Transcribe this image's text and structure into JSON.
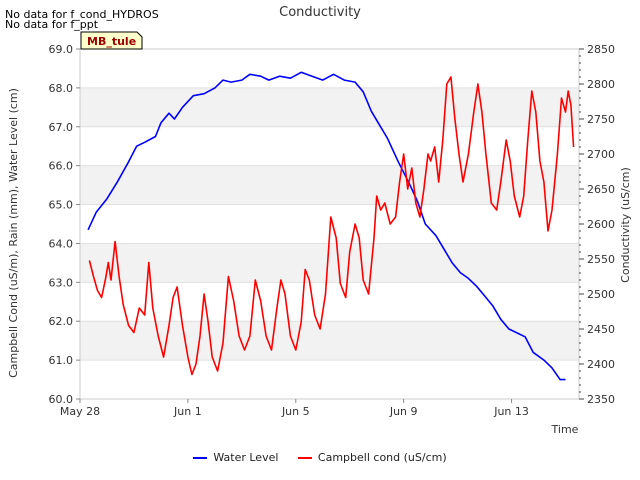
{
  "no_data_lines": [
    "No data for f_cond_HYDROS",
    "No data for f_ppt"
  ],
  "site_badge": "MB_tule",
  "chart_data": {
    "type": "line",
    "title": "Conductivity",
    "xlabel": "Time",
    "ylabel_left": "Campbell Cond (uS/m), Rain (mm), Water Level (cm)",
    "ylabel_right": "Conductivity (uS/cm)",
    "x_range_days": [
      0,
      18.5
    ],
    "x_ticks": [
      {
        "day": 0,
        "label": "May 28"
      },
      {
        "day": 4,
        "label": "Jun 1"
      },
      {
        "day": 8,
        "label": "Jun 5"
      },
      {
        "day": 12,
        "label": "Jun 9"
      },
      {
        "day": 16,
        "label": "Jun 13"
      }
    ],
    "ylim_left": [
      60.0,
      69.0
    ],
    "yticks_left": [
      "60.0",
      "61.0",
      "62.0",
      "63.0",
      "64.0",
      "65.0",
      "66.0",
      "67.0",
      "68.0",
      "69.0"
    ],
    "ylim_right": [
      2350,
      2850
    ],
    "yticks_right": [
      "2350",
      "2400",
      "2450",
      "2500",
      "2550",
      "2600",
      "2650",
      "2700",
      "2750",
      "2800",
      "2850"
    ],
    "series": [
      {
        "name": "Water Level",
        "axis": "left",
        "color": "#0000ff",
        "points": [
          [
            0.3,
            64.35
          ],
          [
            0.6,
            64.8
          ],
          [
            1.0,
            65.15
          ],
          [
            1.4,
            65.6
          ],
          [
            1.8,
            66.1
          ],
          [
            2.1,
            66.5
          ],
          [
            2.4,
            66.6
          ],
          [
            2.8,
            66.75
          ],
          [
            3.0,
            67.1
          ],
          [
            3.3,
            67.35
          ],
          [
            3.5,
            67.2
          ],
          [
            3.8,
            67.5
          ],
          [
            4.2,
            67.8
          ],
          [
            4.6,
            67.85
          ],
          [
            5.0,
            68.0
          ],
          [
            5.3,
            68.2
          ],
          [
            5.6,
            68.15
          ],
          [
            6.0,
            68.2
          ],
          [
            6.3,
            68.35
          ],
          [
            6.7,
            68.3
          ],
          [
            7.0,
            68.2
          ],
          [
            7.4,
            68.3
          ],
          [
            7.8,
            68.25
          ],
          [
            8.2,
            68.4
          ],
          [
            8.6,
            68.3
          ],
          [
            9.0,
            68.2
          ],
          [
            9.4,
            68.35
          ],
          [
            9.8,
            68.2
          ],
          [
            10.2,
            68.15
          ],
          [
            10.5,
            67.9
          ],
          [
            10.8,
            67.4
          ],
          [
            11.1,
            67.05
          ],
          [
            11.4,
            66.7
          ],
          [
            11.8,
            66.1
          ],
          [
            12.2,
            65.55
          ],
          [
            12.5,
            65.1
          ],
          [
            12.8,
            64.5
          ],
          [
            13.2,
            64.2
          ],
          [
            13.5,
            63.85
          ],
          [
            13.8,
            63.5
          ],
          [
            14.1,
            63.25
          ],
          [
            14.4,
            63.1
          ],
          [
            14.7,
            62.9
          ],
          [
            15.0,
            62.65
          ],
          [
            15.3,
            62.4
          ],
          [
            15.6,
            62.05
          ],
          [
            15.9,
            61.8
          ],
          [
            16.2,
            61.7
          ],
          [
            16.5,
            61.6
          ],
          [
            16.8,
            61.2
          ],
          [
            17.2,
            61.0
          ],
          [
            17.5,
            60.8
          ],
          [
            17.8,
            60.5
          ],
          [
            18.0,
            60.5
          ]
        ]
      },
      {
        "name": "Campbell cond (uS/cm)",
        "axis": "right",
        "color": "#ff0000",
        "points": [
          [
            0.35,
            2548
          ],
          [
            0.5,
            2525
          ],
          [
            0.65,
            2505
          ],
          [
            0.8,
            2495
          ],
          [
            0.95,
            2522
          ],
          [
            1.05,
            2545
          ],
          [
            1.15,
            2520
          ],
          [
            1.3,
            2575
          ],
          [
            1.45,
            2525
          ],
          [
            1.6,
            2485
          ],
          [
            1.8,
            2455
          ],
          [
            2.0,
            2445
          ],
          [
            2.2,
            2480
          ],
          [
            2.4,
            2470
          ],
          [
            2.55,
            2545
          ],
          [
            2.7,
            2480
          ],
          [
            2.9,
            2440
          ],
          [
            3.1,
            2410
          ],
          [
            3.3,
            2455
          ],
          [
            3.45,
            2495
          ],
          [
            3.6,
            2510
          ],
          [
            3.8,
            2455
          ],
          [
            4.0,
            2410
          ],
          [
            4.15,
            2385
          ],
          [
            4.3,
            2400
          ],
          [
            4.45,
            2440
          ],
          [
            4.6,
            2500
          ],
          [
            4.75,
            2460
          ],
          [
            4.9,
            2410
          ],
          [
            5.1,
            2390
          ],
          [
            5.3,
            2430
          ],
          [
            5.5,
            2525
          ],
          [
            5.7,
            2490
          ],
          [
            5.9,
            2440
          ],
          [
            6.1,
            2420
          ],
          [
            6.3,
            2440
          ],
          [
            6.5,
            2520
          ],
          [
            6.7,
            2490
          ],
          [
            6.9,
            2440
          ],
          [
            7.1,
            2420
          ],
          [
            7.3,
            2480
          ],
          [
            7.45,
            2520
          ],
          [
            7.6,
            2500
          ],
          [
            7.8,
            2440
          ],
          [
            8.0,
            2420
          ],
          [
            8.2,
            2460
          ],
          [
            8.35,
            2535
          ],
          [
            8.5,
            2520
          ],
          [
            8.7,
            2470
          ],
          [
            8.9,
            2450
          ],
          [
            9.1,
            2500
          ],
          [
            9.3,
            2610
          ],
          [
            9.5,
            2580
          ],
          [
            9.65,
            2515
          ],
          [
            9.85,
            2495
          ],
          [
            10.0,
            2560
          ],
          [
            10.2,
            2600
          ],
          [
            10.35,
            2580
          ],
          [
            10.5,
            2520
          ],
          [
            10.7,
            2500
          ],
          [
            10.9,
            2580
          ],
          [
            11.0,
            2640
          ],
          [
            11.15,
            2620
          ],
          [
            11.3,
            2630
          ],
          [
            11.5,
            2600
          ],
          [
            11.7,
            2610
          ],
          [
            11.85,
            2660
          ],
          [
            12.0,
            2700
          ],
          [
            12.15,
            2650
          ],
          [
            12.3,
            2680
          ],
          [
            12.45,
            2630
          ],
          [
            12.6,
            2610
          ],
          [
            12.75,
            2650
          ],
          [
            12.9,
            2700
          ],
          [
            13.0,
            2690
          ],
          [
            13.15,
            2710
          ],
          [
            13.3,
            2660
          ],
          [
            13.45,
            2720
          ],
          [
            13.6,
            2800
          ],
          [
            13.75,
            2810
          ],
          [
            13.9,
            2750
          ],
          [
            14.05,
            2700
          ],
          [
            14.2,
            2660
          ],
          [
            14.4,
            2700
          ],
          [
            14.6,
            2760
          ],
          [
            14.75,
            2800
          ],
          [
            14.9,
            2760
          ],
          [
            15.05,
            2700
          ],
          [
            15.25,
            2630
          ],
          [
            15.45,
            2620
          ],
          [
            15.6,
            2660
          ],
          [
            15.8,
            2720
          ],
          [
            15.95,
            2690
          ],
          [
            16.1,
            2640
          ],
          [
            16.3,
            2610
          ],
          [
            16.45,
            2640
          ],
          [
            16.6,
            2720
          ],
          [
            16.75,
            2790
          ],
          [
            16.9,
            2760
          ],
          [
            17.05,
            2690
          ],
          [
            17.2,
            2660
          ],
          [
            17.35,
            2590
          ],
          [
            17.5,
            2620
          ],
          [
            17.7,
            2700
          ],
          [
            17.85,
            2780
          ],
          [
            18.0,
            2760
          ],
          [
            18.1,
            2790
          ],
          [
            18.2,
            2770
          ],
          [
            18.3,
            2710
          ]
        ]
      }
    ],
    "legend": [
      "Water Level",
      "Campbell cond (uS/cm)"
    ],
    "legend_position": "bottom-center",
    "grid": "alternating horizontal bands"
  }
}
